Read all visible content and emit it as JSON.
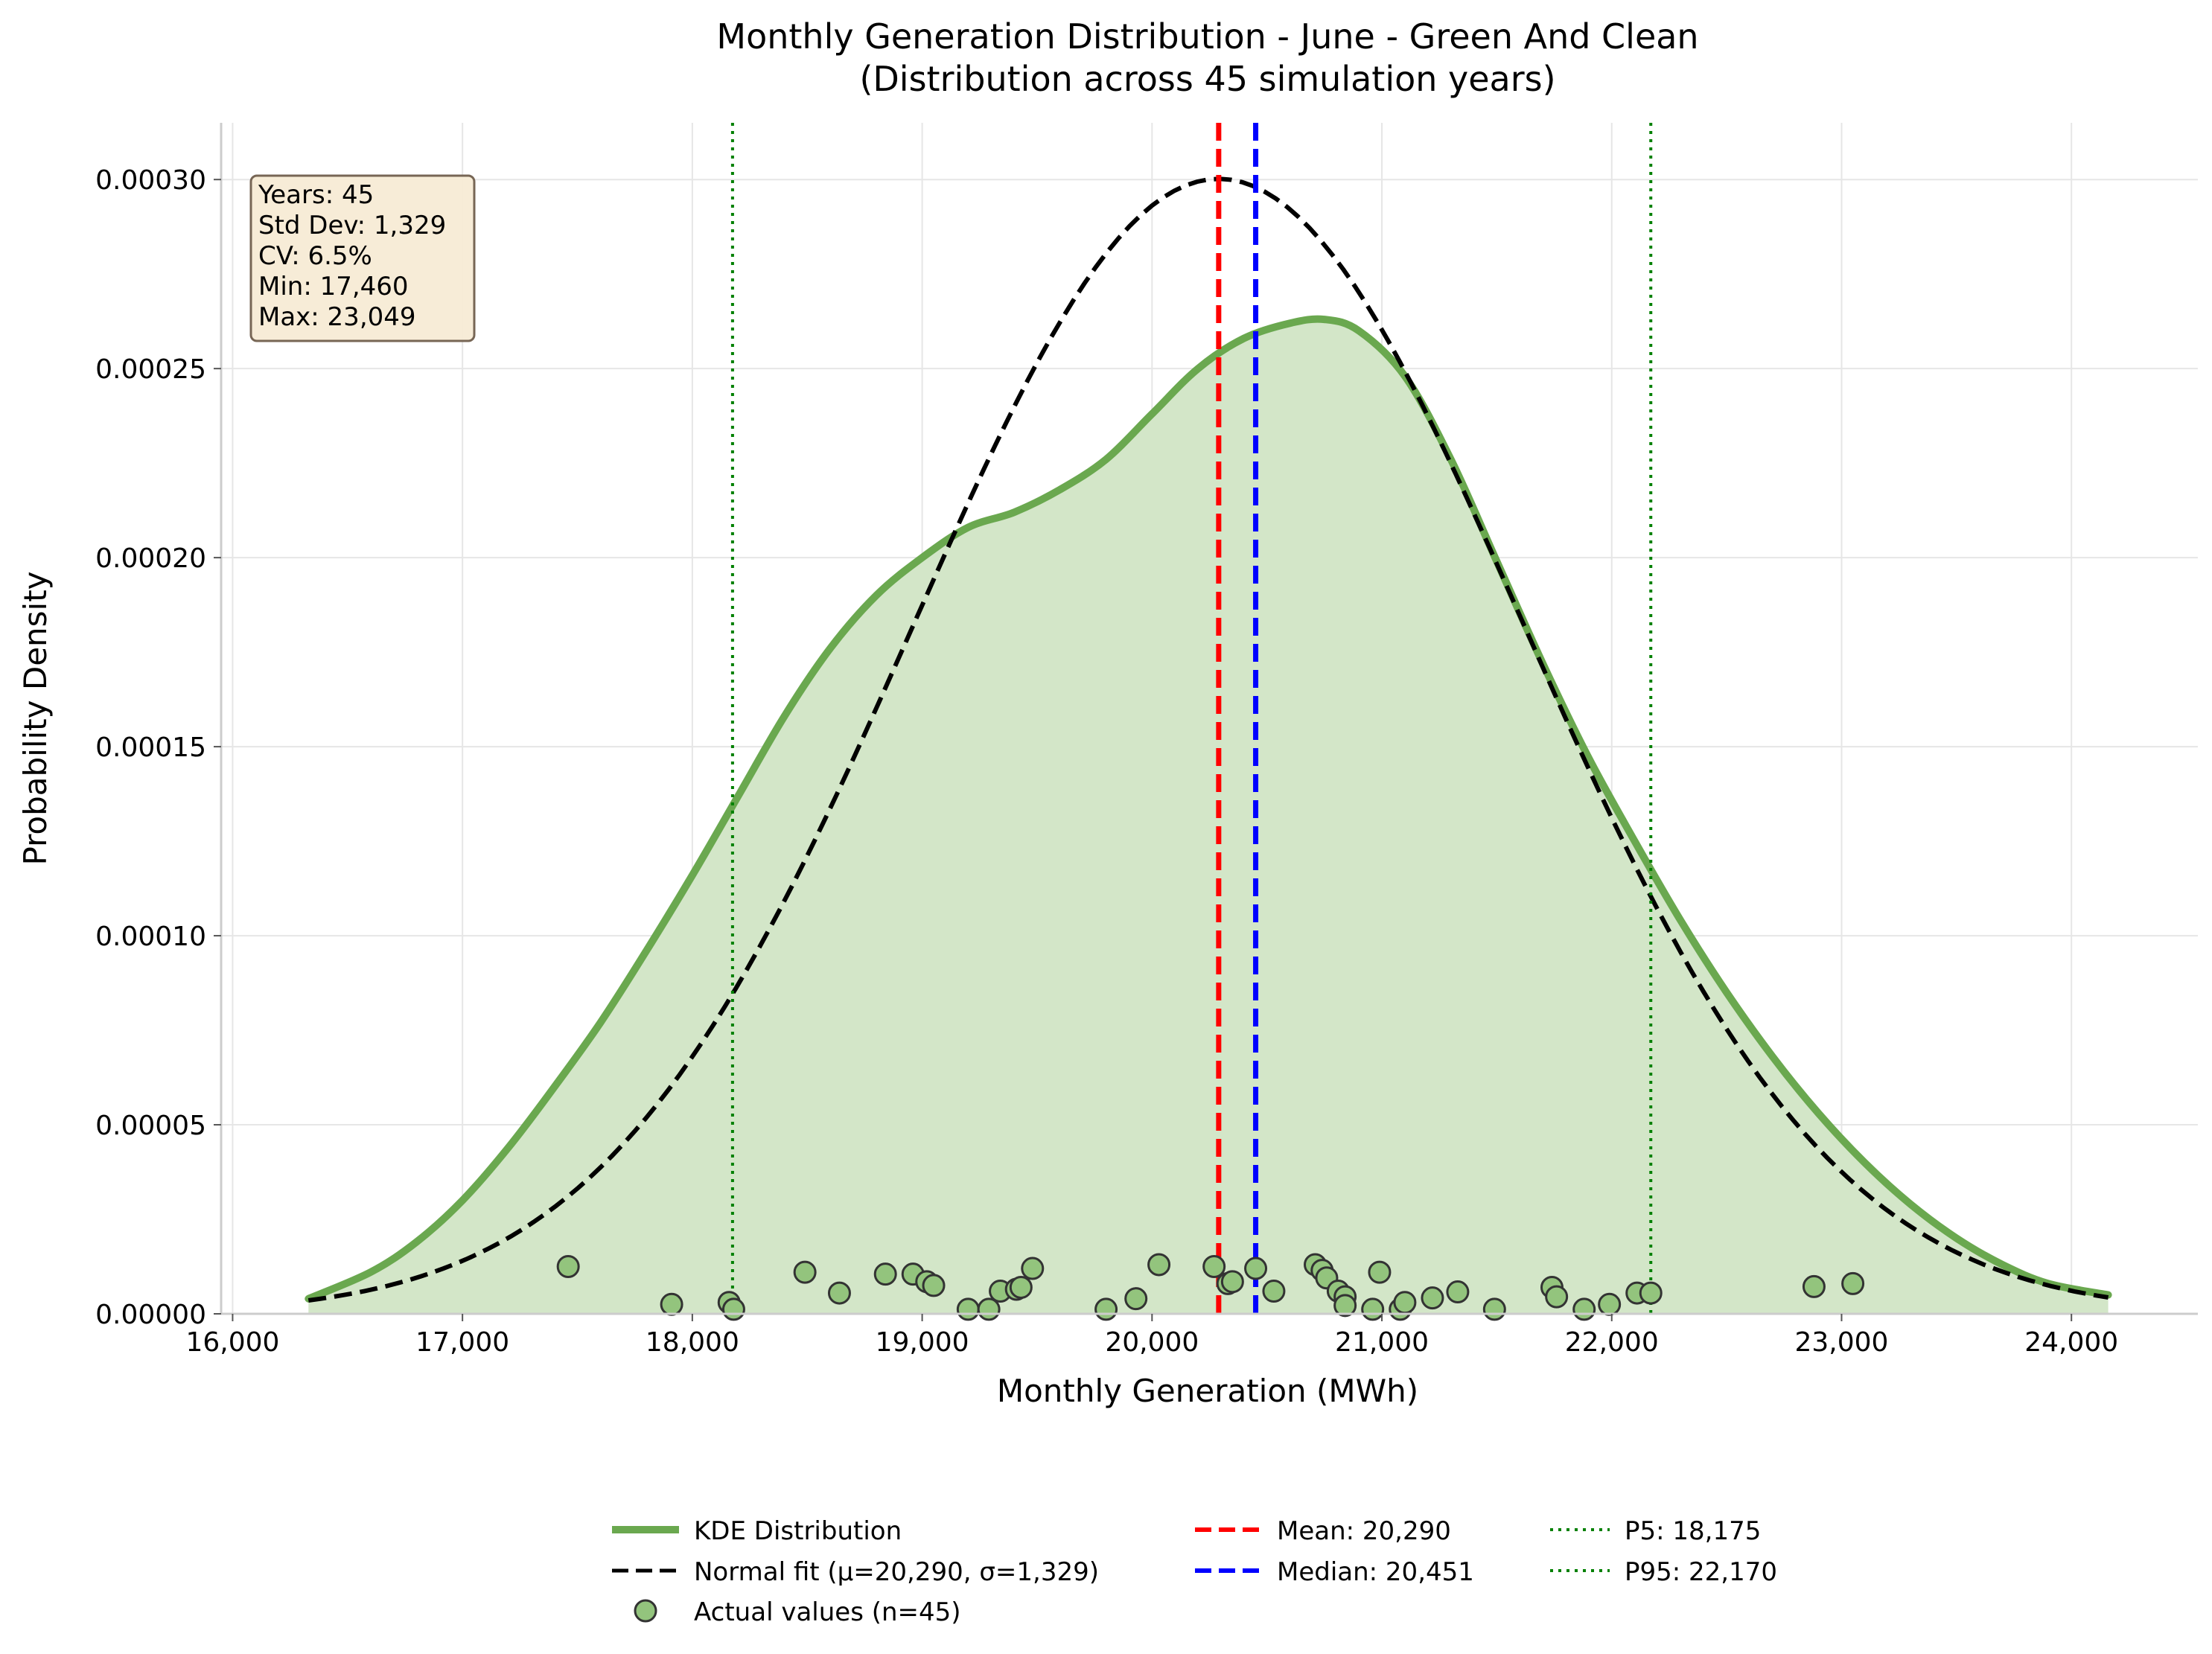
{
  "chart_data": {
    "type": "area",
    "title": "Monthly Generation Distribution - June - Green And Clean",
    "subtitle": "(Distribution across 45 simulation years)",
    "xlabel": "Monthly Generation (MWh)",
    "ylabel": "Probability Density",
    "xlim": [
      15950,
      24550
    ],
    "ylim": [
      0,
      0.000315
    ],
    "xticks": [
      16000,
      17000,
      18000,
      19000,
      20000,
      21000,
      22000,
      23000,
      24000
    ],
    "xtick_labels": [
      "16,000",
      "17,000",
      "18,000",
      "19,000",
      "20,000",
      "21,000",
      "22,000",
      "23,000",
      "24,000"
    ],
    "yticks": [
      0,
      5e-05,
      0.0001,
      0.00015,
      0.0002,
      0.00025,
      0.0003
    ],
    "ytick_labels": [
      "0.00000",
      "0.00005",
      "0.00010",
      "0.00015",
      "0.00020",
      "0.00025",
      "0.00030"
    ],
    "grid": true,
    "legend_position": "bottom-center",
    "series": [
      {
        "name": "KDE Distribution",
        "kind": "kde",
        "color": "#6aa84f",
        "fill": "#d3e6c8",
        "x": [
          16330,
          16600,
          16800,
          17000,
          17200,
          17400,
          17600,
          17800,
          18000,
          18200,
          18400,
          18600,
          18800,
          19000,
          19200,
          19400,
          19600,
          19800,
          20000,
          20200,
          20400,
          20600,
          20750,
          20900,
          21100,
          21300,
          21500,
          21700,
          21900,
          22100,
          22300,
          22500,
          22700,
          22900,
          23100,
          23300,
          23500,
          23700,
          23900,
          24160
        ],
        "y": [
          4e-06,
          1.1e-05,
          1.9e-05,
          3e-05,
          4.4e-05,
          6e-05,
          7.7e-05,
          9.6e-05,
          0.000116,
          0.000137,
          0.000158,
          0.000176,
          0.00019,
          0.0002,
          0.000208,
          0.000212,
          0.000218,
          0.000226,
          0.000238,
          0.00025,
          0.000258,
          0.000262,
          0.000263,
          0.00026,
          0.000248,
          0.000226,
          0.000199,
          0.000172,
          0.000147,
          0.000125,
          0.000104,
          8.5e-05,
          6.8e-05,
          5.3e-05,
          4e-05,
          2.9e-05,
          2e-05,
          1.3e-05,
          8e-06,
          5e-06
        ]
      },
      {
        "name": "Normal fit (μ=20,290, σ=1,329)",
        "kind": "normal",
        "color": "#000000",
        "mu": 20290,
        "sigma": 1329,
        "x_range": [
          16330,
          24160
        ]
      },
      {
        "name": "Mean: 20,290",
        "kind": "vline",
        "x": 20290,
        "color": "#ff0000",
        "style": "dashed"
      },
      {
        "name": "Median: 20,451",
        "kind": "vline",
        "x": 20451,
        "color": "#0000ff",
        "style": "dashed"
      },
      {
        "name": "P5: 18,175",
        "kind": "vline",
        "x": 18175,
        "color": "#008000",
        "style": "dotted"
      },
      {
        "name": "P95: 22,170",
        "kind": "vline",
        "x": 22170,
        "color": "#008000",
        "style": "dotted"
      },
      {
        "name": "Actual values (n=45)",
        "kind": "scatter",
        "color": "#93c47d",
        "edge": "#333333",
        "points": [
          [
            17460,
            1.25e-05
          ],
          [
            17910,
            2.5e-06
          ],
          [
            18160,
            3e-06
          ],
          [
            18180,
            1.2e-06
          ],
          [
            18490,
            1.1e-05
          ],
          [
            18640,
            5.5e-06
          ],
          [
            18840,
            1.05e-05
          ],
          [
            18960,
            1.05e-05
          ],
          [
            19020,
            8.5e-06
          ],
          [
            19050,
            7.5e-06
          ],
          [
            19200,
            1.2e-06
          ],
          [
            19290,
            1.2e-06
          ],
          [
            19340,
            6e-06
          ],
          [
            19410,
            6.5e-06
          ],
          [
            19430,
            7e-06
          ],
          [
            19480,
            1.2e-05
          ],
          [
            19800,
            1.2e-06
          ],
          [
            19930,
            4e-06
          ],
          [
            20030,
            1.3e-05
          ],
          [
            20270,
            1.25e-05
          ],
          [
            20330,
            8e-06
          ],
          [
            20350,
            8.5e-06
          ],
          [
            20451,
            1.2e-05
          ],
          [
            20530,
            6e-06
          ],
          [
            20710,
            1.3e-05
          ],
          [
            20740,
            1.15e-05
          ],
          [
            20760,
            9.5e-06
          ],
          [
            20810,
            6e-06
          ],
          [
            20840,
            4.5e-06
          ],
          [
            20840,
            2.2e-06
          ],
          [
            20960,
            1.2e-06
          ],
          [
            20990,
            1.1e-05
          ],
          [
            21080,
            1.2e-06
          ],
          [
            21100,
            3e-06
          ],
          [
            21220,
            4.2e-06
          ],
          [
            21330,
            5.8e-06
          ],
          [
            21490,
            1.2e-06
          ],
          [
            21740,
            7e-06
          ],
          [
            21760,
            4.5e-06
          ],
          [
            21880,
            1.2e-06
          ],
          [
            21990,
            2.5e-06
          ],
          [
            22110,
            5.5e-06
          ],
          [
            22170,
            5.5e-06
          ],
          [
            22880,
            7.2e-06
          ],
          [
            23049,
            8e-06
          ]
        ]
      }
    ],
    "stats_box": {
      "lines": [
        "Years: 45",
        "Std Dev: 1,329",
        "CV: 6.5%",
        "Min: 17,460",
        "Max: 23,049"
      ],
      "background": "#f7ebd5"
    }
  }
}
